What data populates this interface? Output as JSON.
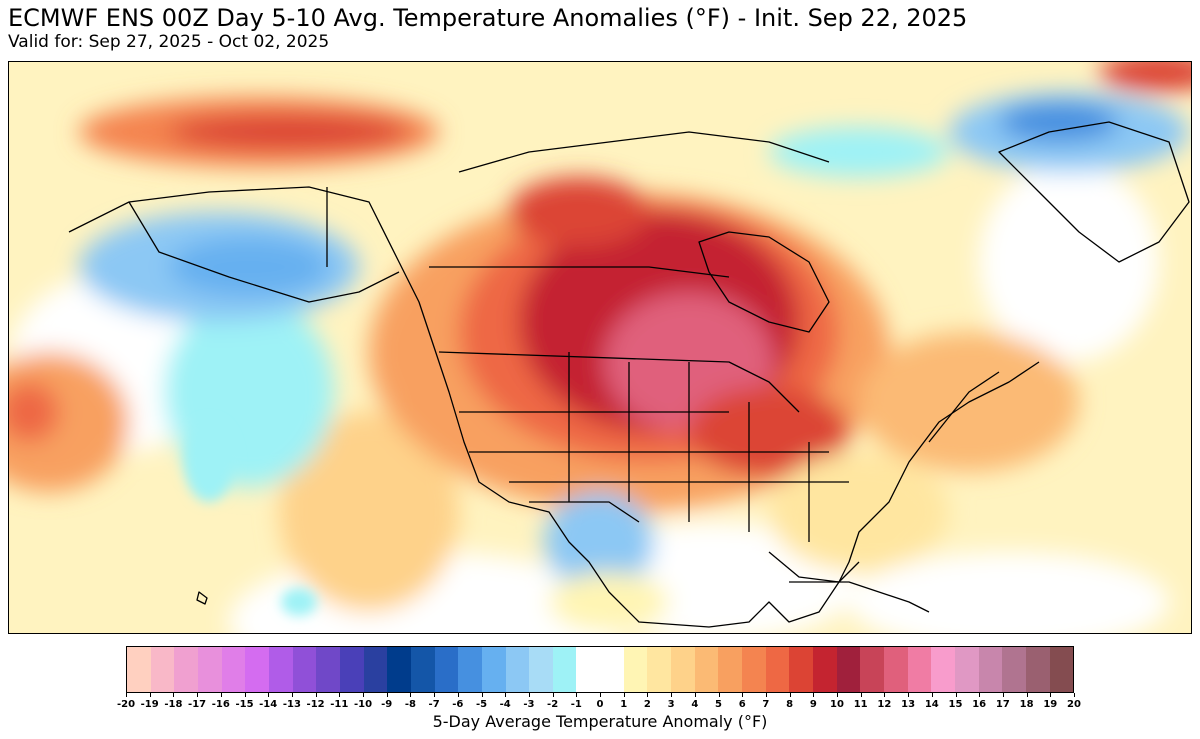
{
  "header": {
    "title": "ECMWF ENS 00Z Day 5-10 Avg. Temperature Anomalies (°F) - Init. Sep 22, 2025",
    "subtitle": "Valid for: Sep 27, 2025 - Oct 02, 2025"
  },
  "map": {
    "variable": "temperature anomaly",
    "units": "°F",
    "region": "North America",
    "anomaly_regions": [
      {
        "name": "central-canada-plains-warm-core",
        "anomaly": 13
      },
      {
        "name": "northern-plains-warm",
        "anomaly": 11
      },
      {
        "name": "great-lakes-ontario-warm",
        "anomaly": 9
      },
      {
        "name": "northern-rockies-warm",
        "anomaly": 8
      },
      {
        "name": "eastern-us-mild",
        "anomaly": 3
      },
      {
        "name": "alaska-cool",
        "anomaly": -4
      },
      {
        "name": "northeast-pacific-cool",
        "anomaly": -1
      },
      {
        "name": "mexico-southwest-cool",
        "anomaly": -3
      },
      {
        "name": "north-pacific-warm-band",
        "anomaly": 7
      },
      {
        "name": "greenland-cool",
        "anomaly": -5
      },
      {
        "name": "hawaii-vicinity-mild",
        "anomaly": 2
      }
    ]
  },
  "colorbar": {
    "label": "5-Day Average Temperature Anomaly (°F)",
    "ticks": [
      "-20",
      "-19",
      "-18",
      "-17",
      "-16",
      "-15",
      "-14",
      "-13",
      "-12",
      "-11",
      "-10",
      "-9",
      "-8",
      "-7",
      "-6",
      "-5",
      "-4",
      "-3",
      "-2",
      "-1",
      "0",
      "1",
      "2",
      "3",
      "4",
      "5",
      "6",
      "7",
      "8",
      "9",
      "10",
      "11",
      "12",
      "13",
      "14",
      "15",
      "16",
      "17",
      "18",
      "19",
      "20"
    ],
    "colors": [
      "#ffd0c0",
      "#f9b8c8",
      "#f0a0d0",
      "#e890dc",
      "#e07ee8",
      "#d46cf0",
      "#b05ce8",
      "#9050d8",
      "#7048c8",
      "#4a40b8",
      "#2a40a0",
      "#003c8c",
      "#1456a8",
      "#2a6ec8",
      "#4690e0",
      "#66b0f0",
      "#8cc8f4",
      "#a8dcf6",
      "#9ef2f6",
      "#ffffff",
      "#ffffff",
      "#fff5b4",
      "#ffe6a0",
      "#fed28a",
      "#fbba74",
      "#f8a060",
      "#f48450",
      "#ee6844",
      "#dc4434",
      "#c42430",
      "#a0203c",
      "#c84458",
      "#e0607c",
      "#f07ca4",
      "#f89ccc",
      "#e098c4",
      "#c886ac",
      "#b07490",
      "#9a6070",
      "#844c50",
      "#6c4030"
    ]
  }
}
